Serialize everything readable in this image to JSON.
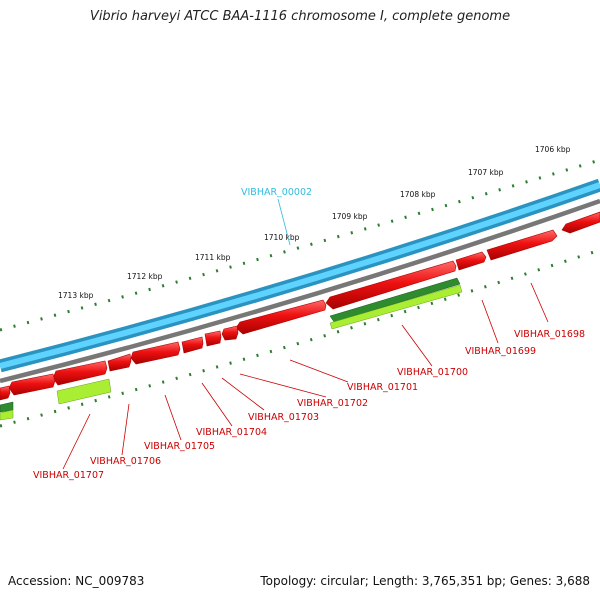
{
  "title": "Vibrio harveyi ATCC BAA-1116 chromosome I, complete genome",
  "footer": {
    "accession": "Accession: NC_009783",
    "summary": "Topology: circular; Length: 3,765,351 bp; Genes: 3,688"
  },
  "colors": {
    "forward_backbone": "#33bbee",
    "backbone_gray": "#7a7a7a",
    "gene_red": "#ee1111",
    "gene_dark_green": "#2e8b2e",
    "gene_light_green": "#aaee33",
    "tick_green": "#2e7d32",
    "label_red": "#cc0000",
    "label_cyan": "#33bbdd"
  },
  "kbp_ticks": [
    "1713 kbp",
    "1712 kbp",
    "1711 kbp",
    "1710 kbp",
    "1709 kbp",
    "1708 kbp",
    "1707 kbp",
    "1706 kbp"
  ],
  "gene_labels": [
    {
      "text": "VIBHAR_00002",
      "color": "cyan"
    },
    {
      "text": "VIBHAR_01698",
      "color": "red"
    },
    {
      "text": "VIBHAR_01699",
      "color": "red"
    },
    {
      "text": "VIBHAR_01700",
      "color": "red"
    },
    {
      "text": "VIBHAR_01701",
      "color": "red"
    },
    {
      "text": "VIBHAR_01702",
      "color": "red"
    },
    {
      "text": "VIBHAR_01703",
      "color": "red"
    },
    {
      "text": "VIBHAR_01704",
      "color": "red"
    },
    {
      "text": "VIBHAR_01705",
      "color": "red"
    },
    {
      "text": "VIBHAR_01706",
      "color": "red"
    },
    {
      "text": "VIBHAR_01707",
      "color": "red"
    }
  ]
}
